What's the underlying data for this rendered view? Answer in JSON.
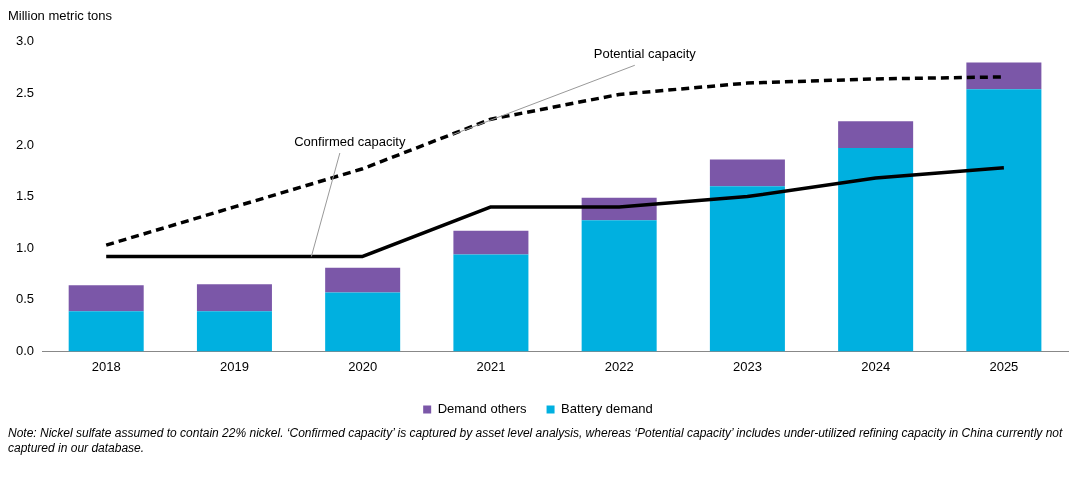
{
  "chart_data": {
    "type": "bar",
    "ylabel": "Million metric tons",
    "categories": [
      "2018",
      "2019",
      "2020",
      "2021",
      "2022",
      "2023",
      "2024",
      "2025"
    ],
    "stacked": true,
    "legend": "bottom",
    "grid": false,
    "ylim": [
      0,
      3
    ],
    "yticks": [
      {
        "value": 0,
        "label": "0.0"
      },
      {
        "value": 0.5,
        "label": "0.5"
      },
      {
        "value": 1,
        "label": "1.0"
      },
      {
        "value": 1.5,
        "label": "1.5"
      },
      {
        "value": 2,
        "label": "2.0"
      },
      {
        "value": 2.5,
        "label": "2.5"
      },
      {
        "value": 3,
        "label": "3.0"
      }
    ],
    "series": [
      {
        "name": "Battery demand",
        "color": "#00b0e0",
        "values": [
          0.39,
          0.39,
          0.57,
          0.94,
          1.27,
          1.6,
          1.97,
          2.54
        ]
      },
      {
        "name": "Demand others",
        "color": "#7b57a8",
        "values": [
          0.25,
          0.26,
          0.24,
          0.23,
          0.22,
          0.26,
          0.26,
          0.26
        ]
      },
      {
        "name": "Confirmed capacity",
        "type": "line",
        "color": "#000000",
        "line_style": "solid",
        "values": [
          0.92,
          0.92,
          0.92,
          1.4,
          1.4,
          1.5,
          1.68,
          1.78
        ]
      },
      {
        "name": "Potential capacity",
        "type": "line",
        "color": "#000000",
        "line_style": "dashed",
        "values": [
          1.03,
          1.4,
          1.77,
          2.25,
          2.49,
          2.6,
          2.64,
          2.66
        ]
      }
    ],
    "annotations": [
      "Note: Nickel sulfate assumed to contain 22% nickel. ‘Confirmed capacity’ is captured by asset level analysis, whereas ‘Potential capacity’ includes under-utilized refining capacity in China currently not captured in our database."
    ]
  }
}
